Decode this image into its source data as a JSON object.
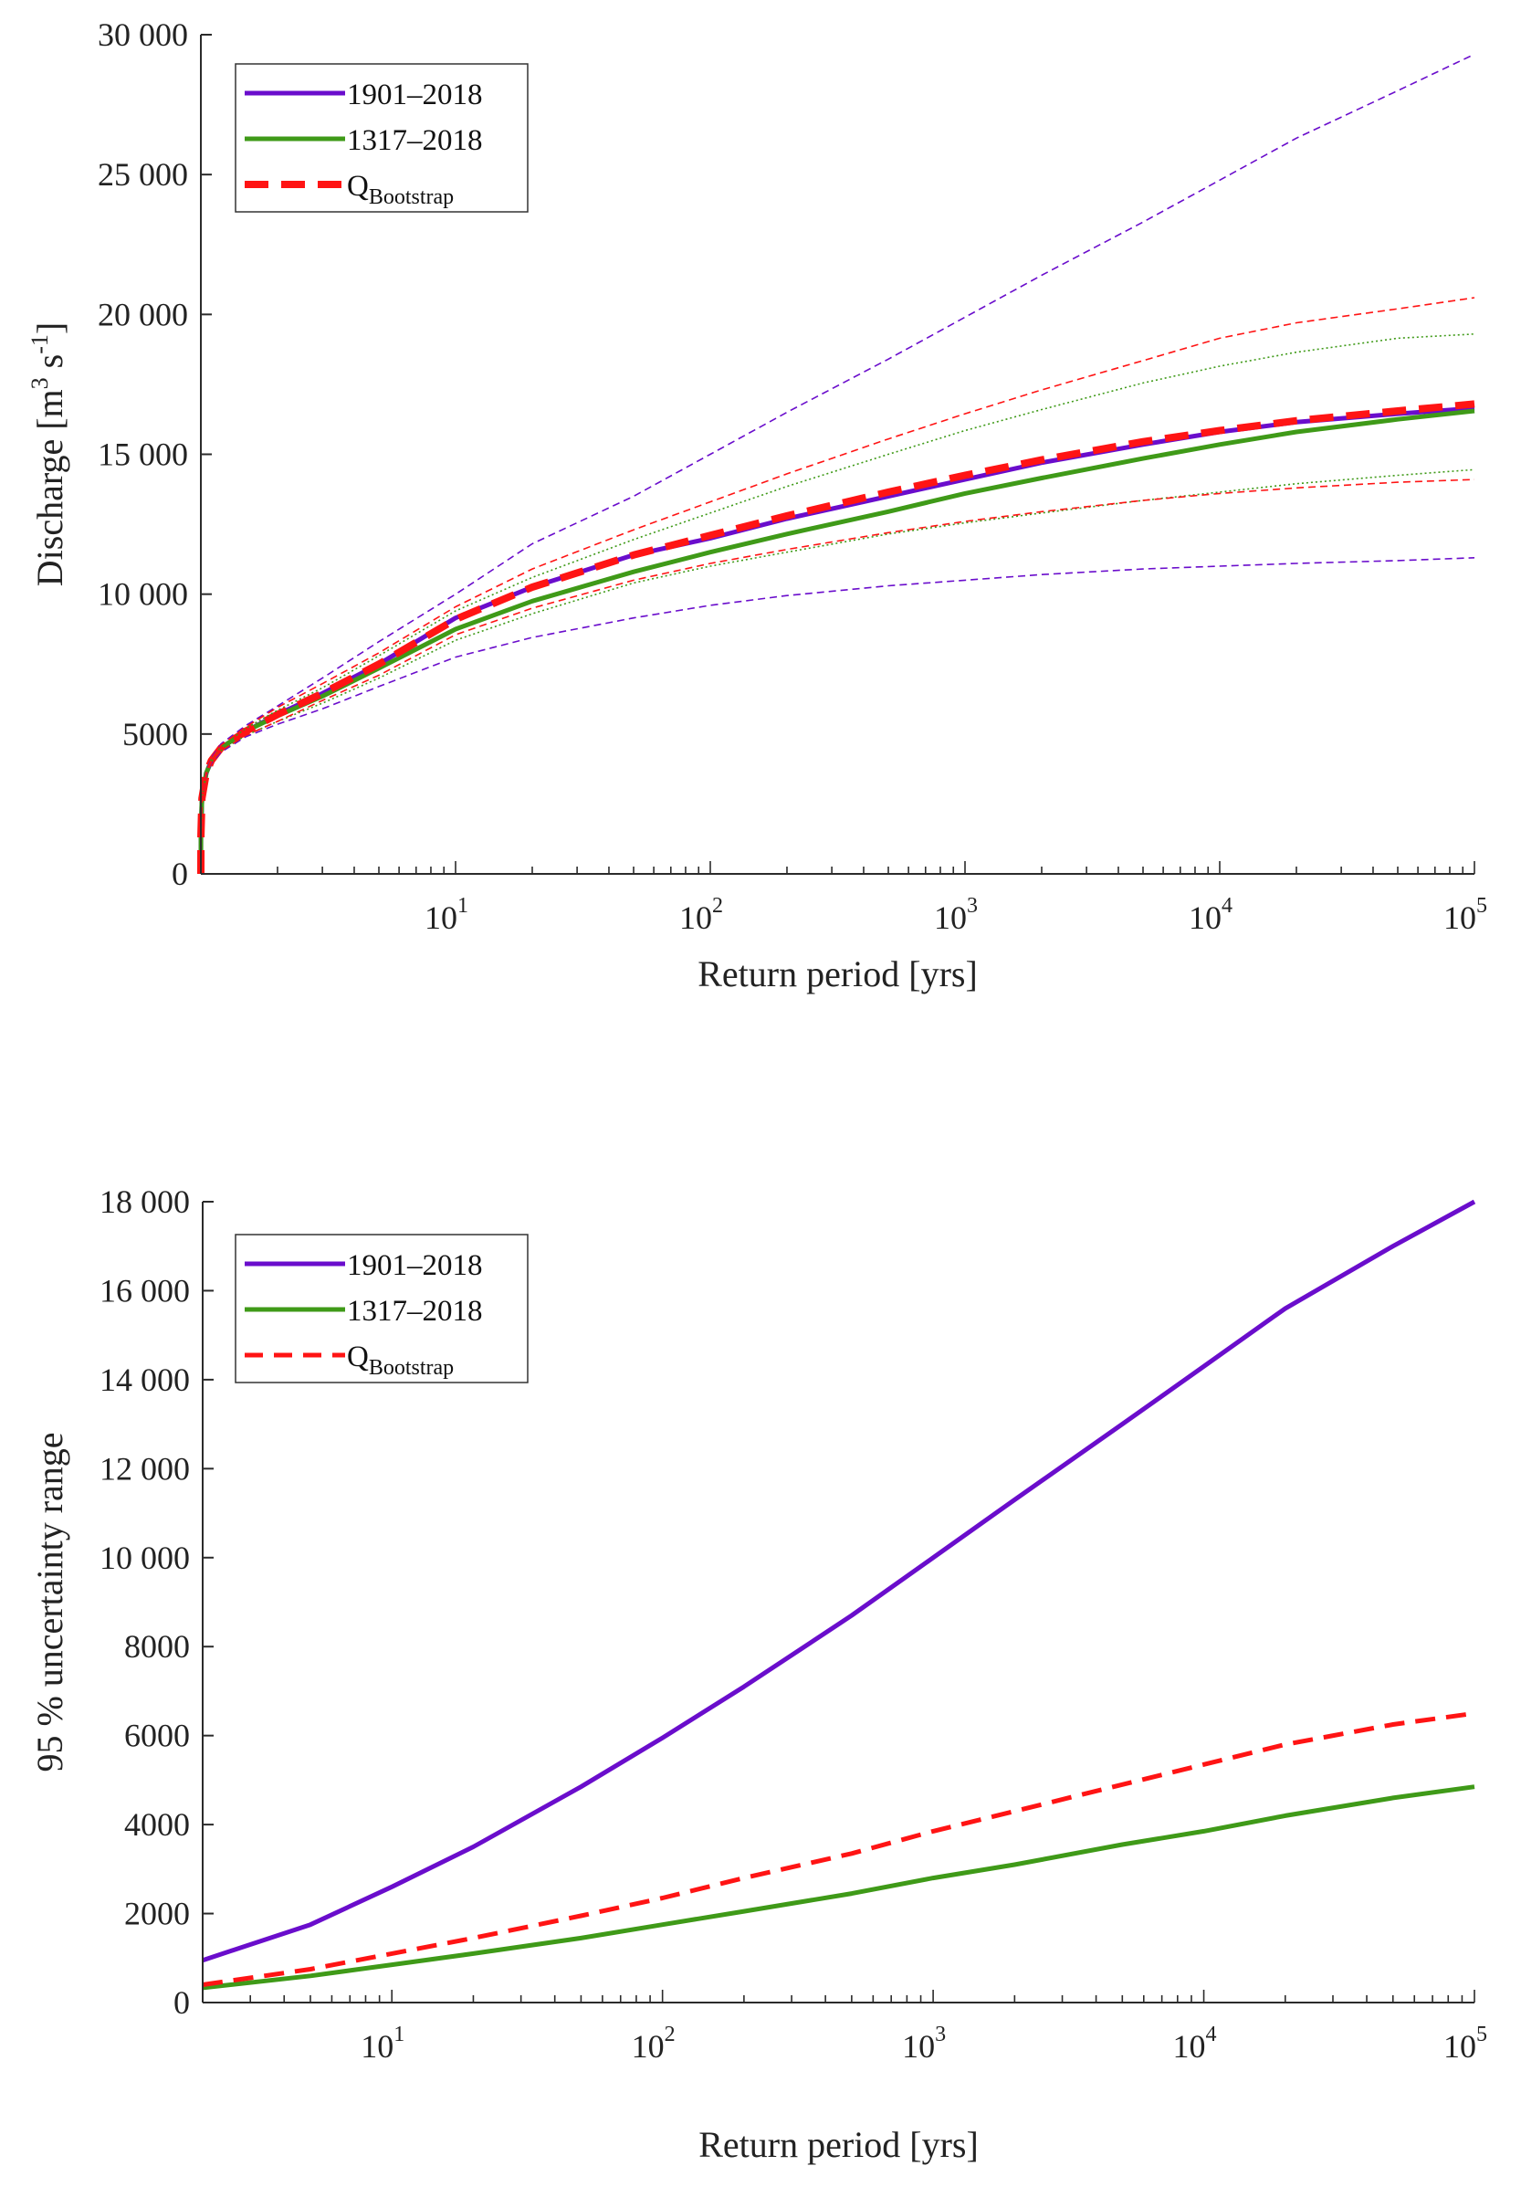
{
  "colors": {
    "series_1901": "#6a0dcc",
    "series_1317": "#3f9a18",
    "series_bootstrap": "#ff1414",
    "axis": "#2b2b2b"
  },
  "chart_data": [
    {
      "type": "line",
      "x_scale": "log",
      "xlabel": "Return period [yrs]",
      "ylabel": "Discharge [m³ s⁻¹]",
      "ylabel_parts": {
        "main": "Discharge [m",
        "sup1": "3",
        "mid": " s",
        "sup2": "-1",
        "end": "]"
      },
      "xlim": [
        1,
        100000
      ],
      "ylim": [
        0,
        30000
      ],
      "y_ticks": [
        0,
        5000,
        10000,
        15000,
        20000,
        25000,
        30000
      ],
      "y_tick_labels": [
        "0",
        "5000",
        "10 000",
        "15 000",
        "20 000",
        "25 000",
        "30 000"
      ],
      "x_ticks": [
        10,
        100,
        1000,
        10000,
        100000
      ],
      "x_tick_labels": [
        {
          "base": "10",
          "exp": "1"
        },
        {
          "base": "10",
          "exp": "2"
        },
        {
          "base": "10",
          "exp": "3"
        },
        {
          "base": "10",
          "exp": "4"
        },
        {
          "base": "10",
          "exp": "5"
        }
      ],
      "legend": {
        "position": "top-left",
        "entries": [
          {
            "label": "1901–2018",
            "sub": ""
          },
          {
            "label": "1317–2018",
            "sub": ""
          },
          {
            "label": "Q",
            "sub": "Bootstrap"
          }
        ]
      },
      "series": [
        {
          "name": "1901–2018",
          "style": "solid",
          "x": [
            1,
            1.001,
            1.01,
            1.05,
            1.1,
            1.2,
            1.5,
            2,
            3,
            5,
            10,
            20,
            50,
            100,
            200,
            500,
            1000,
            2000,
            5000,
            10000,
            20000,
            50000,
            100000
          ],
          "values": [
            0,
            1400,
            2700,
            3600,
            4050,
            4500,
            5100,
            5700,
            6450,
            7500,
            9150,
            10250,
            11400,
            12000,
            12700,
            13500,
            14100,
            14700,
            15350,
            15800,
            16150,
            16450,
            16650
          ]
        },
        {
          "name": "1317–2018",
          "style": "solid",
          "x": [
            1,
            1.001,
            1.01,
            1.05,
            1.1,
            1.2,
            1.5,
            2,
            3,
            5,
            10,
            20,
            50,
            100,
            200,
            500,
            1000,
            2000,
            5000,
            10000,
            20000,
            50000,
            100000
          ],
          "values": [
            0,
            1400,
            2700,
            3600,
            4050,
            4500,
            5100,
            5650,
            6350,
            7350,
            8750,
            9750,
            10800,
            11500,
            12150,
            12950,
            13600,
            14150,
            14850,
            15350,
            15800,
            16250,
            16550
          ]
        },
        {
          "name": "Q Bootstrap",
          "style": "dashed",
          "x": [
            1,
            1.001,
            1.01,
            1.05,
            1.1,
            1.2,
            1.5,
            2,
            3,
            5,
            10,
            20,
            50,
            100,
            200,
            500,
            1000,
            2000,
            5000,
            10000,
            20000,
            50000,
            100000
          ],
          "values": [
            0,
            1400,
            2700,
            3600,
            4050,
            4500,
            5100,
            5700,
            6450,
            7500,
            9100,
            10250,
            11400,
            12100,
            12800,
            13650,
            14250,
            14800,
            15450,
            15850,
            16200,
            16550,
            16800
          ]
        },
        {
          "name": "1901–2018 lower bound",
          "style": "dashed-thin",
          "color": "series_1901",
          "x": [
            1,
            1.001,
            1.01,
            1.05,
            1.1,
            1.2,
            1.5,
            2,
            3,
            5,
            10,
            20,
            50,
            100,
            200,
            500,
            1000,
            2000,
            5000,
            10000,
            20000,
            50000,
            100000
          ],
          "values": [
            0,
            1400,
            2700,
            3500,
            3950,
            4350,
            4900,
            5350,
            5900,
            6700,
            7750,
            8450,
            9150,
            9600,
            9950,
            10300,
            10500,
            10700,
            10900,
            11000,
            11100,
            11200,
            11300
          ]
        },
        {
          "name": "1901–2018 upper bound",
          "style": "dashed-thin",
          "color": "series_1901",
          "x": [
            1,
            1.001,
            1.01,
            1.05,
            1.1,
            1.2,
            1.5,
            2,
            3,
            5,
            10,
            20,
            50,
            100,
            200,
            500,
            1000,
            2000,
            5000,
            10000,
            20000,
            50000,
            100000
          ],
          "values": [
            0,
            1400,
            2700,
            3700,
            4150,
            4650,
            5300,
            6000,
            7000,
            8300,
            10000,
            11800,
            13500,
            15000,
            16500,
            18400,
            19900,
            21400,
            23300,
            24800,
            26300,
            28000,
            29300
          ]
        },
        {
          "name": "1317–2018 lower bound",
          "style": "dotted-thin",
          "color": "series_1317",
          "x": [
            1,
            1.001,
            1.01,
            1.05,
            1.1,
            1.2,
            1.5,
            2,
            3,
            5,
            10,
            20,
            50,
            100,
            200,
            500,
            1000,
            2000,
            5000,
            10000,
            20000,
            50000,
            100000
          ],
          "values": [
            0,
            1400,
            2700,
            3550,
            4000,
            4400,
            4950,
            5450,
            6100,
            7000,
            8350,
            9300,
            10400,
            11000,
            11500,
            12150,
            12550,
            12900,
            13350,
            13650,
            13950,
            14250,
            14450
          ]
        },
        {
          "name": "1317–2018 upper bound",
          "style": "dotted-thin",
          "color": "series_1317",
          "x": [
            1,
            1.001,
            1.01,
            1.05,
            1.1,
            1.2,
            1.5,
            2,
            3,
            5,
            10,
            20,
            50,
            100,
            200,
            500,
            1000,
            2000,
            5000,
            10000,
            20000,
            50000,
            100000
          ],
          "values": [
            0,
            1400,
            2700,
            3650,
            4100,
            4550,
            5200,
            5850,
            6650,
            7800,
            9400,
            10600,
            11950,
            12900,
            13850,
            15000,
            15850,
            16600,
            17550,
            18150,
            18650,
            19150,
            19300
          ]
        },
        {
          "name": "Q Bootstrap lower bound",
          "style": "dashed-thin",
          "color": "series_bootstrap",
          "x": [
            1,
            1.001,
            1.01,
            1.05,
            1.1,
            1.2,
            1.5,
            2,
            3,
            5,
            10,
            20,
            50,
            100,
            200,
            500,
            1000,
            2000,
            5000,
            10000,
            20000,
            50000,
            100000
          ],
          "values": [
            0,
            1400,
            2700,
            3550,
            4000,
            4400,
            4950,
            5450,
            6200,
            7100,
            8550,
            9500,
            10500,
            11100,
            11600,
            12200,
            12600,
            12950,
            13350,
            13600,
            13800,
            14000,
            14100
          ]
        },
        {
          "name": "Q Bootstrap upper bound",
          "style": "dashed-thin",
          "color": "series_bootstrap",
          "x": [
            1,
            1.001,
            1.01,
            1.05,
            1.1,
            1.2,
            1.5,
            2,
            3,
            5,
            10,
            20,
            50,
            100,
            200,
            500,
            1000,
            2000,
            5000,
            10000,
            20000,
            50000,
            100000
          ],
          "values": [
            0,
            1400,
            2700,
            3650,
            4100,
            4600,
            5250,
            5950,
            6800,
            7900,
            9550,
            10900,
            12300,
            13300,
            14300,
            15550,
            16450,
            17300,
            18350,
            19150,
            19700,
            20200,
            20600
          ]
        }
      ]
    },
    {
      "type": "line",
      "x_scale": "log",
      "xlabel": "Return period [yrs]",
      "ylabel": "95 % uncertainty range",
      "xlim": [
        2,
        100000
      ],
      "ylim": [
        0,
        18000
      ],
      "y_ticks": [
        0,
        2000,
        4000,
        6000,
        8000,
        10000,
        12000,
        14000,
        16000,
        18000
      ],
      "y_tick_labels": [
        "0",
        "2000",
        "4000",
        "6000",
        "8000",
        "10 000",
        "12 000",
        "14 000",
        "16 000",
        "18 000"
      ],
      "x_ticks": [
        10,
        100,
        1000,
        10000,
        100000
      ],
      "x_tick_labels": [
        {
          "base": "10",
          "exp": "1"
        },
        {
          "base": "10",
          "exp": "2"
        },
        {
          "base": "10",
          "exp": "3"
        },
        {
          "base": "10",
          "exp": "4"
        },
        {
          "base": "10",
          "exp": "5"
        }
      ],
      "legend": {
        "position": "top-left",
        "entries": [
          {
            "label": "1901–2018",
            "sub": ""
          },
          {
            "label": "1317–2018",
            "sub": ""
          },
          {
            "label": "Q",
            "sub": "Bootstrap"
          }
        ]
      },
      "series": [
        {
          "name": "1901–2018",
          "style": "solid",
          "x": [
            2,
            5,
            10,
            20,
            50,
            100,
            200,
            500,
            1000,
            2000,
            5000,
            10000,
            20000,
            50000,
            100000
          ],
          "values": [
            950,
            1750,
            2600,
            3500,
            4850,
            5950,
            7100,
            8700,
            10000,
            11300,
            13000,
            14300,
            15600,
            17000,
            18000
          ]
        },
        {
          "name": "1317–2018",
          "style": "solid",
          "x": [
            2,
            5,
            10,
            20,
            50,
            100,
            200,
            500,
            1000,
            2000,
            5000,
            10000,
            20000,
            50000,
            100000
          ],
          "values": [
            330,
            600,
            850,
            1100,
            1450,
            1750,
            2050,
            2450,
            2800,
            3100,
            3550,
            3850,
            4200,
            4600,
            4850
          ]
        },
        {
          "name": "Q Bootstrap",
          "style": "dashed",
          "x": [
            2,
            5,
            10,
            20,
            50,
            100,
            200,
            500,
            1000,
            2000,
            5000,
            10000,
            20000,
            50000,
            100000
          ],
          "values": [
            400,
            750,
            1100,
            1450,
            1950,
            2350,
            2800,
            3350,
            3850,
            4300,
            4900,
            5350,
            5800,
            6250,
            6500
          ]
        }
      ]
    }
  ]
}
